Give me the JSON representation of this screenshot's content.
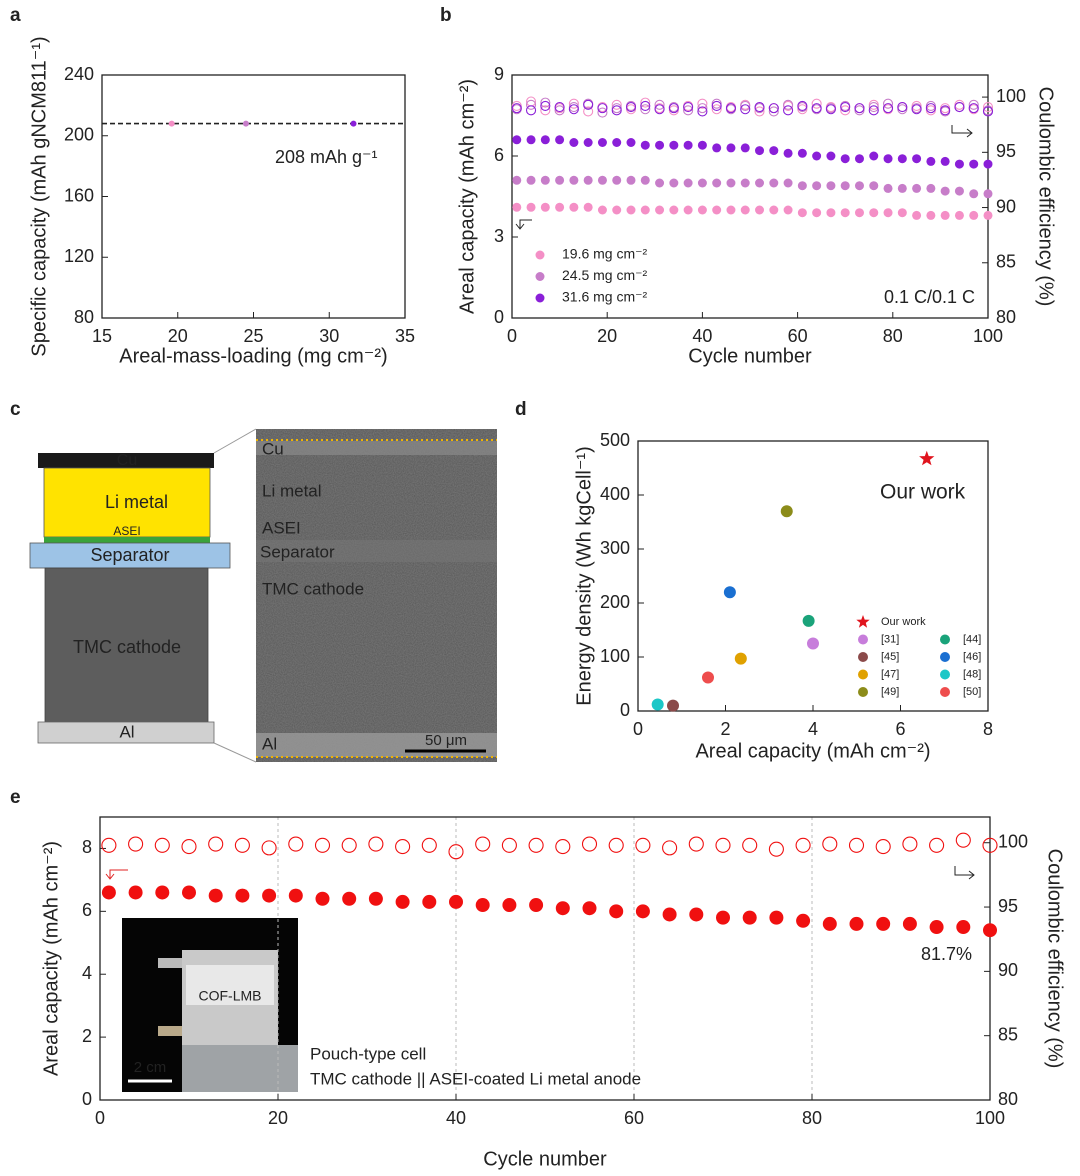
{
  "panel_labels": [
    "a",
    "b",
    "c",
    "d",
    "e"
  ],
  "chart_data": [
    {
      "type": "scatter",
      "xlabel": "Areal-mass-loading (mg cm⁻²)",
      "ylabel": "Specific capacity (mAh gNCM811⁻¹)",
      "xlim": [
        15,
        35
      ],
      "xticks": [
        15,
        20,
        25,
        30,
        35
      ],
      "ylim": [
        80,
        240
      ],
      "yticks": [
        80,
        120,
        160,
        200,
        240
      ],
      "hline": 208,
      "annotation": "208 mAh g⁻¹",
      "series": [
        {
          "color": "#f48fc6",
          "x": [
            19.6
          ],
          "values": [
            208
          ]
        },
        {
          "color": "#c77dc9",
          "x": [
            24.5
          ],
          "values": [
            208
          ]
        },
        {
          "color": "#8a1fd8",
          "x": [
            31.6
          ],
          "values": [
            208
          ]
        }
      ]
    },
    {
      "type": "scatter",
      "xlabel": "Cycle number",
      "ylabel": "Areal capacity (mAh cm⁻²)",
      "y2label": "Coulombic efficiency (%)",
      "xlim": [
        0,
        100
      ],
      "xticks": [
        0,
        20,
        40,
        60,
        80,
        100
      ],
      "ylim": [
        0,
        9
      ],
      "yticks": [
        0,
        3,
        6,
        9
      ],
      "y2lim": [
        80,
        102
      ],
      "y2ticks": [
        80,
        85,
        90,
        95,
        100
      ],
      "annotation": "0.1 C/0.1 C",
      "x": [
        1,
        4,
        7,
        10,
        13,
        16,
        19,
        22,
        25,
        28,
        31,
        34,
        37,
        40,
        43,
        46,
        49,
        52,
        55,
        58,
        61,
        64,
        67,
        70,
        73,
        76,
        79,
        82,
        85,
        88,
        91,
        94,
        97,
        100
      ],
      "series": [
        {
          "name": "19.6 mg cm⁻²",
          "color": "#f48fc6",
          "values": [
            4.1,
            4.1,
            4.1,
            4.1,
            4.1,
            4.1,
            4.0,
            4.0,
            4.0,
            4.0,
            4.0,
            4.0,
            4.0,
            4.0,
            4.0,
            4.0,
            4.0,
            4.0,
            4.0,
            4.0,
            3.9,
            3.9,
            3.9,
            3.9,
            3.9,
            3.9,
            3.9,
            3.9,
            3.8,
            3.8,
            3.8,
            3.8,
            3.8,
            3.8
          ]
        },
        {
          "name": "24.5 mg cm⁻²",
          "color": "#c77dc9",
          "values": [
            5.1,
            5.1,
            5.1,
            5.1,
            5.1,
            5.1,
            5.1,
            5.1,
            5.1,
            5.1,
            5.0,
            5.0,
            5.0,
            5.0,
            5.0,
            5.0,
            5.0,
            5.0,
            5.0,
            5.0,
            4.9,
            4.9,
            4.9,
            4.9,
            4.9,
            4.9,
            4.8,
            4.8,
            4.8,
            4.8,
            4.7,
            4.7,
            4.6,
            4.6
          ]
        },
        {
          "name": "31.6 mg cm⁻²",
          "color": "#8a1fd8",
          "values": [
            6.6,
            6.6,
            6.6,
            6.6,
            6.5,
            6.5,
            6.5,
            6.5,
            6.5,
            6.4,
            6.4,
            6.4,
            6.4,
            6.4,
            6.3,
            6.3,
            6.3,
            6.2,
            6.2,
            6.1,
            6.1,
            6.0,
            6.0,
            5.9,
            5.9,
            6.0,
            5.9,
            5.9,
            5.9,
            5.8,
            5.8,
            5.7,
            5.7,
            5.7
          ]
        },
        {
          "color": "#f48fc6",
          "axis": "y2",
          "marker": "open",
          "values": [
            99.2,
            99.6,
            98.8,
            99.0,
            99.4,
            98.7,
            99.1,
            99.3,
            98.9,
            99.5,
            99.0,
            98.8,
            99.2,
            99.4,
            98.9,
            99.1,
            99.3,
            98.7,
            99.0,
            99.2,
            98.9,
            99.4,
            99.1,
            98.8,
            99.0,
            99.3,
            98.9,
            99.1,
            99.2,
            98.8,
            99.0,
            99.3,
            98.9,
            99.1
          ]
        },
        {
          "color": "#c77dc9",
          "axis": "y2",
          "marker": "open",
          "values": [
            98.9,
            99.3,
            99.5,
            98.8,
            99.1,
            99.4,
            98.6,
            99.0,
            99.2,
            98.9,
            99.3,
            99.1,
            98.8,
            99.0,
            99.4,
            98.9,
            99.2,
            99.0,
            98.7,
            99.3,
            99.1,
            98.9,
            99.0,
            99.2,
            98.8,
            99.1,
            99.4,
            98.9,
            99.0,
            99.2,
            98.7,
            99.1,
            99.3,
            98.8
          ]
        },
        {
          "color": "#8a1fd8",
          "axis": "y2",
          "marker": "open",
          "values": [
            99.0,
            98.8,
            99.2,
            99.1,
            98.9,
            99.3,
            99.0,
            98.8,
            99.1,
            99.2,
            98.9,
            99.0,
            99.1,
            98.7,
            99.2,
            99.0,
            98.9,
            99.1,
            99.0,
            98.8,
            99.2,
            99.0,
            98.9,
            99.1,
            99.0,
            98.8,
            99.0,
            99.1,
            98.9,
            99.0,
            98.8,
            99.1,
            99.0,
            98.7
          ]
        }
      ]
    },
    {
      "type": "scatter",
      "xlabel": "Areal capacity (mAh cm⁻²)",
      "ylabel": "Energy density (Wh kgCell⁻¹)",
      "xlim": [
        0,
        8
      ],
      "xticks": [
        0,
        2,
        4,
        6,
        8
      ],
      "ylim": [
        0,
        500
      ],
      "yticks": [
        0,
        100,
        200,
        300,
        400,
        500
      ],
      "annotation": "Our work",
      "series": [
        {
          "name": "Our work",
          "color": "#e0141e",
          "marker": "star",
          "x": [
            6.6
          ],
          "values": [
            467
          ]
        },
        {
          "name": "[31]",
          "color": "#c77ddb",
          "x": [
            4.0
          ],
          "values": [
            125
          ]
        },
        {
          "name": "[44]",
          "color": "#1aa37a",
          "x": [
            3.9
          ],
          "values": [
            167
          ]
        },
        {
          "name": "[45]",
          "color": "#8b4a4a",
          "x": [
            0.8
          ],
          "values": [
            10
          ]
        },
        {
          "name": "[46]",
          "color": "#1a6fd1",
          "x": [
            2.1
          ],
          "values": [
            220
          ]
        },
        {
          "name": "[47]",
          "color": "#e0a100",
          "x": [
            2.35
          ],
          "values": [
            97
          ]
        },
        {
          "name": "[48]",
          "color": "#1cc7c7",
          "x": [
            0.45
          ],
          "values": [
            12
          ]
        },
        {
          "name": "[49]",
          "color": "#8c8c1a",
          "x": [
            3.4
          ],
          "values": [
            370
          ]
        },
        {
          "name": "[50]",
          "color": "#ee4d4d",
          "x": [
            1.6
          ],
          "values": [
            62
          ]
        }
      ]
    },
    {
      "type": "scatter",
      "xlabel": "Cycle number",
      "ylabel": "Areal capacity (mAh cm⁻²)",
      "y2label": "Coulombic efficiency (%)",
      "xlim": [
        0,
        100
      ],
      "xticks": [
        0,
        20,
        40,
        60,
        80,
        100
      ],
      "ylim": [
        0,
        9
      ],
      "yticks": [
        0,
        2,
        4,
        6,
        8
      ],
      "y2lim": [
        80,
        102
      ],
      "y2ticks": [
        80,
        85,
        90,
        95,
        100
      ],
      "xgrid": true,
      "annotation": "81.7%",
      "notes": [
        "Pouch-type cell",
        "TMC cathode || ASEI-coated Li metal anode"
      ],
      "inset_labels": [
        "COF-LMB",
        "2 cm"
      ],
      "x": [
        1,
        4,
        7,
        10,
        13,
        16,
        19,
        22,
        25,
        28,
        31,
        34,
        37,
        40,
        43,
        46,
        49,
        52,
        55,
        58,
        61,
        64,
        67,
        70,
        73,
        76,
        79,
        82,
        85,
        88,
        91,
        94,
        97,
        100
      ],
      "series": [
        {
          "color": "#f01010",
          "values": [
            6.6,
            6.6,
            6.6,
            6.6,
            6.5,
            6.5,
            6.5,
            6.5,
            6.4,
            6.4,
            6.4,
            6.3,
            6.3,
            6.3,
            6.2,
            6.2,
            6.2,
            6.1,
            6.1,
            6.0,
            6.0,
            5.9,
            5.9,
            5.8,
            5.8,
            5.8,
            5.7,
            5.6,
            5.6,
            5.6,
            5.6,
            5.5,
            5.5,
            5.4
          ]
        },
        {
          "color": "#f01010",
          "axis": "y2",
          "marker": "open",
          "values": [
            99.8,
            99.9,
            99.8,
            99.7,
            99.9,
            99.8,
            99.6,
            99.9,
            99.8,
            99.8,
            99.9,
            99.7,
            99.8,
            99.3,
            99.9,
            99.8,
            99.8,
            99.7,
            99.9,
            99.8,
            99.8,
            99.6,
            99.9,
            99.8,
            99.8,
            99.5,
            99.8,
            99.9,
            99.8,
            99.7,
            99.9,
            99.8,
            100.2,
            99.8
          ]
        }
      ]
    }
  ],
  "diagram_c": {
    "layers": [
      "Cu",
      "Li metal",
      "ASEI",
      "Separator",
      "TMC cathode",
      "Al"
    ],
    "image_labels": [
      "Cu",
      "Li metal",
      "ASEI",
      "Separator",
      "TMC cathode",
      "Al"
    ],
    "scale_bar": "50 μm"
  }
}
